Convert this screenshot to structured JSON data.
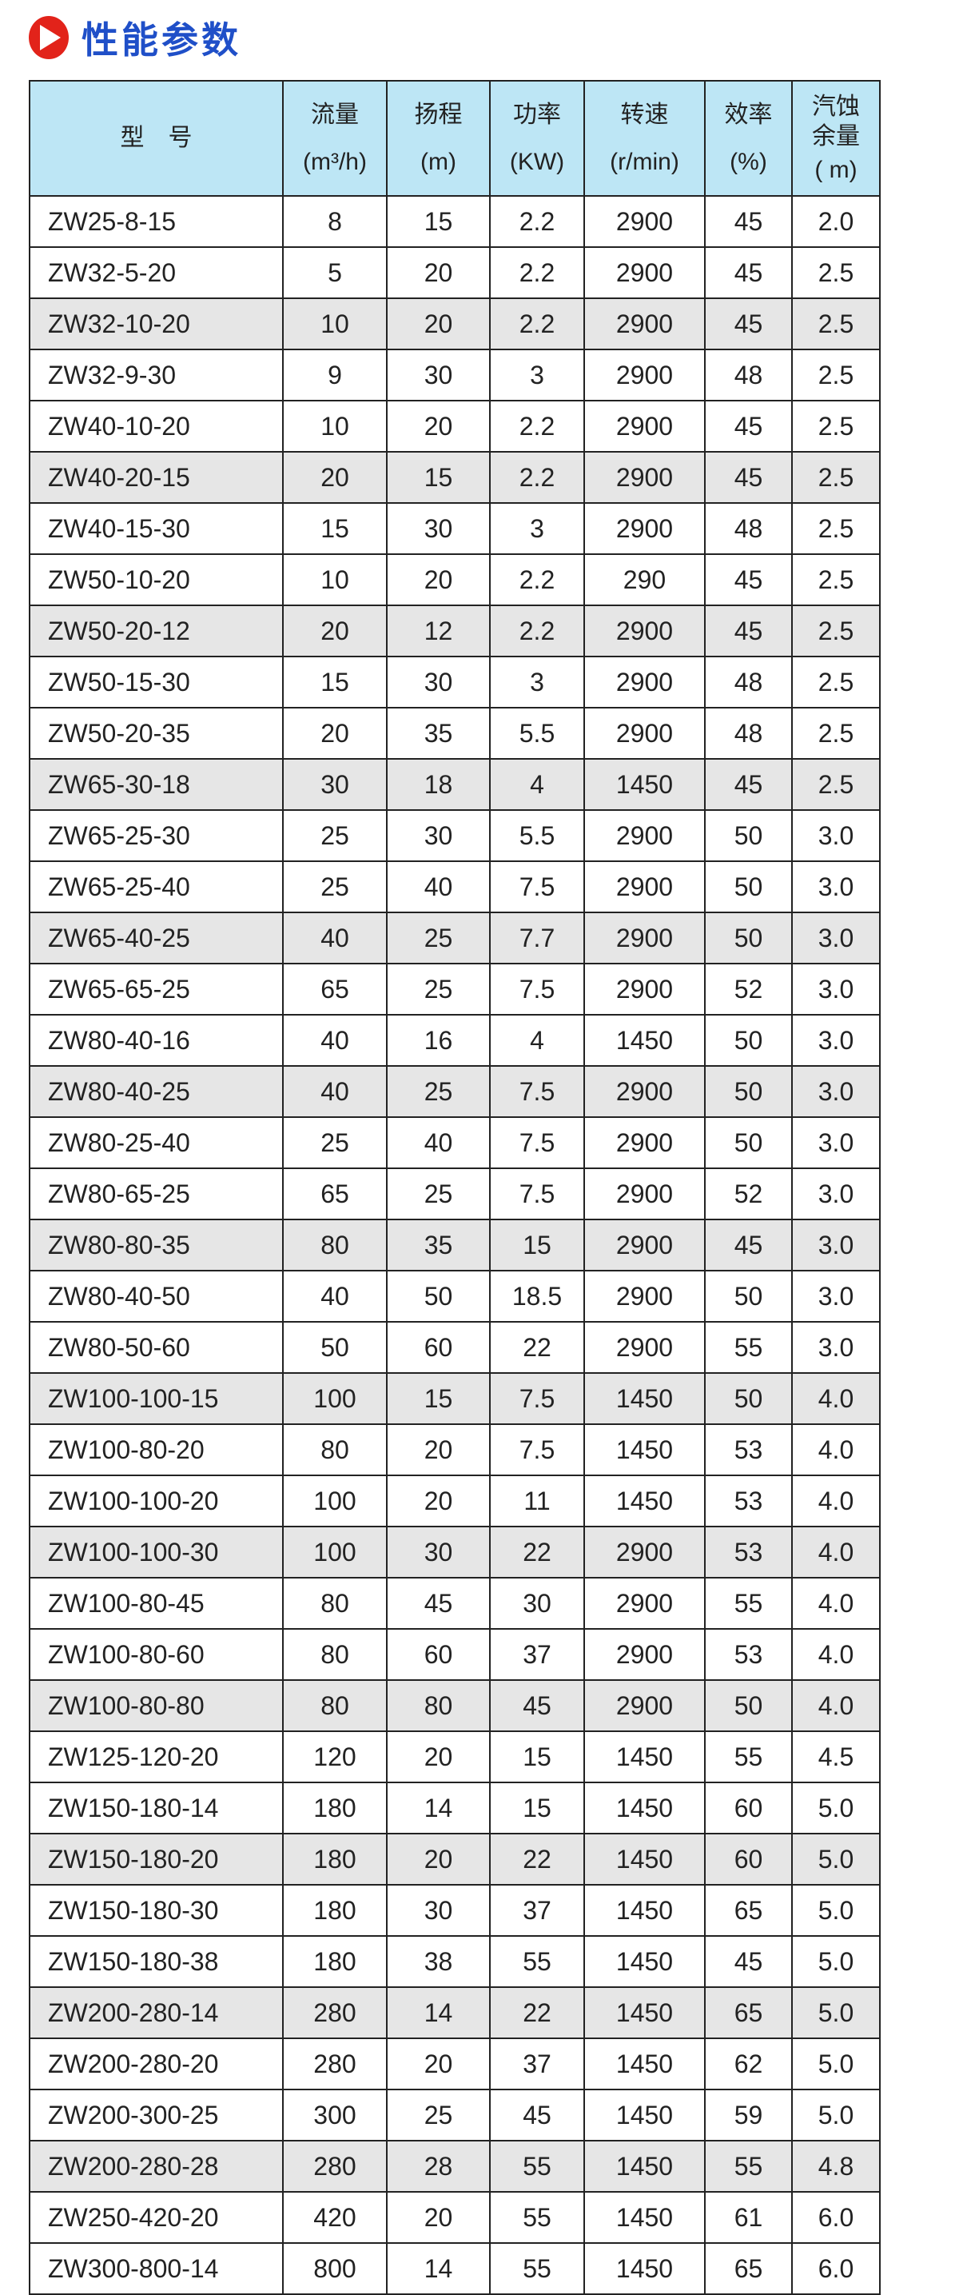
{
  "title": "性能参数",
  "icon": "play-circle-icon",
  "colors": {
    "title": "#1f4fc8",
    "icon": "#e2231a",
    "header_bg": "#bde6f5",
    "shade": "#e6e6e6"
  },
  "columns": [
    {
      "name": "型　号",
      "unit": ""
    },
    {
      "name": "流量",
      "unit": "(m³/h)"
    },
    {
      "name": "扬程",
      "unit": "(m)"
    },
    {
      "name": "功率",
      "unit": "(KW)"
    },
    {
      "name": "转速",
      "unit": "(r/min)"
    },
    {
      "name": "效率",
      "unit": "(%)"
    },
    {
      "name": "汽蚀余量",
      "unit": "( m)"
    }
  ],
  "rows": [
    [
      "ZW25-8-15",
      "8",
      "15",
      "2.2",
      "2900",
      "45",
      "2.0"
    ],
    [
      "ZW32-5-20",
      "5",
      "20",
      "2.2",
      "2900",
      "45",
      "2.5"
    ],
    [
      "ZW32-10-20",
      "10",
      "20",
      "2.2",
      "2900",
      "45",
      "2.5"
    ],
    [
      "ZW32-9-30",
      "9",
      "30",
      "3",
      "2900",
      "48",
      "2.5"
    ],
    [
      "ZW40-10-20",
      "10",
      "20",
      "2.2",
      "2900",
      "45",
      "2.5"
    ],
    [
      "ZW40-20-15",
      "20",
      "15",
      "2.2",
      "2900",
      "45",
      "2.5"
    ],
    [
      "ZW40-15-30",
      "15",
      "30",
      "3",
      "2900",
      "48",
      "2.5"
    ],
    [
      "ZW50-10-20",
      "10",
      "20",
      "2.2",
      "290",
      "45",
      "2.5"
    ],
    [
      "ZW50-20-12",
      "20",
      "12",
      "2.2",
      "2900",
      "45",
      "2.5"
    ],
    [
      "ZW50-15-30",
      "15",
      "30",
      "3",
      "2900",
      "48",
      "2.5"
    ],
    [
      "ZW50-20-35",
      "20",
      "35",
      "5.5",
      "2900",
      "48",
      "2.5"
    ],
    [
      "ZW65-30-18",
      "30",
      "18",
      "4",
      "1450",
      "45",
      "2.5"
    ],
    [
      "ZW65-25-30",
      "25",
      "30",
      "5.5",
      "2900",
      "50",
      "3.0"
    ],
    [
      "ZW65-25-40",
      "25",
      "40",
      "7.5",
      "2900",
      "50",
      "3.0"
    ],
    [
      "ZW65-40-25",
      "40",
      "25",
      "7.7",
      "2900",
      "50",
      "3.0"
    ],
    [
      "ZW65-65-25",
      "65",
      "25",
      "7.5",
      "2900",
      "52",
      "3.0"
    ],
    [
      "ZW80-40-16",
      "40",
      "16",
      "4",
      "1450",
      "50",
      "3.0"
    ],
    [
      "ZW80-40-25",
      "40",
      "25",
      "7.5",
      "2900",
      "50",
      "3.0"
    ],
    [
      "ZW80-25-40",
      "25",
      "40",
      "7.5",
      "2900",
      "50",
      "3.0"
    ],
    [
      "ZW80-65-25",
      "65",
      "25",
      "7.5",
      "2900",
      "52",
      "3.0"
    ],
    [
      "ZW80-80-35",
      "80",
      "35",
      "15",
      "2900",
      "45",
      "3.0"
    ],
    [
      "ZW80-40-50",
      "40",
      "50",
      "18.5",
      "2900",
      "50",
      "3.0"
    ],
    [
      "ZW80-50-60",
      "50",
      "60",
      "22",
      "2900",
      "55",
      "3.0"
    ],
    [
      "ZW100-100-15",
      "100",
      "15",
      "7.5",
      "1450",
      "50",
      "4.0"
    ],
    [
      "ZW100-80-20",
      "80",
      "20",
      "7.5",
      "1450",
      "53",
      "4.0"
    ],
    [
      "ZW100-100-20",
      "100",
      "20",
      "11",
      "1450",
      "53",
      "4.0"
    ],
    [
      "ZW100-100-30",
      "100",
      "30",
      "22",
      "2900",
      "53",
      "4.0"
    ],
    [
      "ZW100-80-45",
      "80",
      "45",
      "30",
      "2900",
      "55",
      "4.0"
    ],
    [
      "ZW100-80-60",
      "80",
      "60",
      "37",
      "2900",
      "53",
      "4.0"
    ],
    [
      "ZW100-80-80",
      "80",
      "80",
      "45",
      "2900",
      "50",
      "4.0"
    ],
    [
      "ZW125-120-20",
      "120",
      "20",
      "15",
      "1450",
      "55",
      "4.5"
    ],
    [
      "ZW150-180-14",
      "180",
      "14",
      "15",
      "1450",
      "60",
      "5.0"
    ],
    [
      "ZW150-180-20",
      "180",
      "20",
      "22",
      "1450",
      "60",
      "5.0"
    ],
    [
      "ZW150-180-30",
      "180",
      "30",
      "37",
      "1450",
      "65",
      "5.0"
    ],
    [
      "ZW150-180-38",
      "180",
      "38",
      "55",
      "1450",
      "45",
      "5.0"
    ],
    [
      "ZW200-280-14",
      "280",
      "14",
      "22",
      "1450",
      "65",
      "5.0"
    ],
    [
      "ZW200-280-20",
      "280",
      "20",
      "37",
      "1450",
      "62",
      "5.0"
    ],
    [
      "ZW200-300-25",
      "300",
      "25",
      "45",
      "1450",
      "59",
      "5.0"
    ],
    [
      "ZW200-280-28",
      "280",
      "28",
      "55",
      "1450",
      "55",
      "4.8"
    ],
    [
      "ZW250-420-20",
      "420",
      "20",
      "55",
      "1450",
      "61",
      "6.0"
    ],
    [
      "ZW300-800-14",
      "800",
      "14",
      "55",
      "1450",
      "65",
      "6.0"
    ]
  ]
}
